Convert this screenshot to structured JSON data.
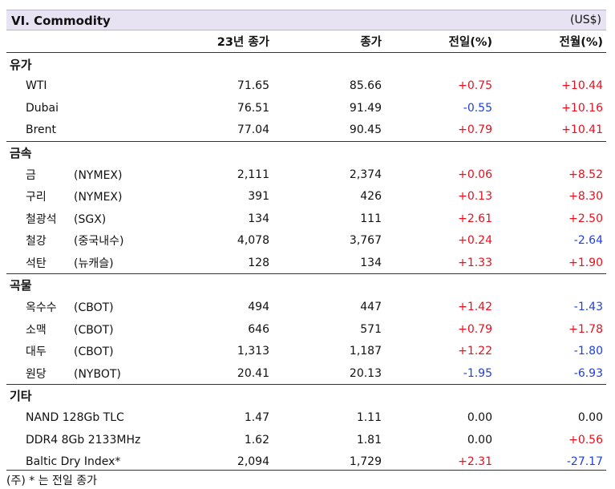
{
  "header": {
    "title": "VI. Commodity",
    "unit": "(US$)"
  },
  "columns": [
    "23년 종가",
    "종가",
    "전일(%)",
    "전월(%)"
  ],
  "sections": [
    {
      "category": "유가",
      "rows": [
        {
          "name": "WTI",
          "sub": "",
          "prev_year_close": "71.65",
          "close": "85.66",
          "dod": "+0.75",
          "mom": "+10.44",
          "dod_sign": "pos",
          "mom_sign": "pos"
        },
        {
          "name": "Dubai",
          "sub": "",
          "prev_year_close": "76.51",
          "close": "91.49",
          "dod": "-0.55",
          "mom": "+10.16",
          "dod_sign": "neg",
          "mom_sign": "pos"
        },
        {
          "name": "Brent",
          "sub": "",
          "prev_year_close": "77.04",
          "close": "90.45",
          "dod": "+0.79",
          "mom": "+10.41",
          "dod_sign": "pos",
          "mom_sign": "pos"
        }
      ]
    },
    {
      "category": "금속",
      "rows": [
        {
          "name": "금",
          "sub": "(NYMEX)",
          "prev_year_close": "2,111",
          "close": "2,374",
          "dod": "+0.06",
          "mom": "+8.52",
          "dod_sign": "pos",
          "mom_sign": "pos"
        },
        {
          "name": "구리",
          "sub": "(NYMEX)",
          "prev_year_close": "391",
          "close": "426",
          "dod": "+0.13",
          "mom": "+8.30",
          "dod_sign": "pos",
          "mom_sign": "pos"
        },
        {
          "name": "철광석",
          "sub": "(SGX)",
          "prev_year_close": "134",
          "close": "111",
          "dod": "+2.61",
          "mom": "+2.50",
          "dod_sign": "pos",
          "mom_sign": "pos"
        },
        {
          "name": "철강",
          "sub": "(중국내수)",
          "prev_year_close": "4,078",
          "close": "3,767",
          "dod": "+0.24",
          "mom": "-2.64",
          "dod_sign": "pos",
          "mom_sign": "neg"
        },
        {
          "name": "석탄",
          "sub": "(뉴캐슬)",
          "prev_year_close": "128",
          "close": "134",
          "dod": "+1.33",
          "mom": "+1.90",
          "dod_sign": "pos",
          "mom_sign": "pos"
        }
      ]
    },
    {
      "category": "곡물",
      "rows": [
        {
          "name": "옥수수",
          "sub": "(CBOT)",
          "prev_year_close": "494",
          "close": "447",
          "dod": "+1.42",
          "mom": "-1.43",
          "dod_sign": "pos",
          "mom_sign": "neg"
        },
        {
          "name": "소맥",
          "sub": "(CBOT)",
          "prev_year_close": "646",
          "close": "571",
          "dod": "+0.79",
          "mom": "+1.78",
          "dod_sign": "pos",
          "mom_sign": "pos"
        },
        {
          "name": "대두",
          "sub": "(CBOT)",
          "prev_year_close": "1,313",
          "close": "1,187",
          "dod": "+1.22",
          "mom": "-1.80",
          "dod_sign": "pos",
          "mom_sign": "neg"
        },
        {
          "name": "원당",
          "sub": "(NYBOT)",
          "prev_year_close": "20.41",
          "close": "20.13",
          "dod": "-1.95",
          "mom": "-6.93",
          "dod_sign": "neg",
          "mom_sign": "neg"
        }
      ]
    },
    {
      "category": "기타",
      "rows": [
        {
          "name": "NAND 128Gb TLC",
          "sub": "",
          "prev_year_close": "1.47",
          "close": "1.11",
          "dod": "0.00",
          "mom": "0.00",
          "dod_sign": "neu",
          "mom_sign": "neu"
        },
        {
          "name": "DDR4 8Gb 2133MHz",
          "sub": "",
          "prev_year_close": "1.62",
          "close": "1.81",
          "dod": "0.00",
          "mom": "+0.56",
          "dod_sign": "neu",
          "mom_sign": "pos"
        },
        {
          "name": "Baltic Dry Index*",
          "sub": "",
          "prev_year_close": "2,094",
          "close": "1,729",
          "dod": "+2.31",
          "mom": "-27.17",
          "dod_sign": "pos",
          "mom_sign": "neg"
        }
      ]
    }
  ],
  "footnote": "(주) * 는 전일 종가",
  "colors": {
    "positive": "#e8101e",
    "negative": "#1f3fe0",
    "title_bg": "#e7e3f2"
  }
}
